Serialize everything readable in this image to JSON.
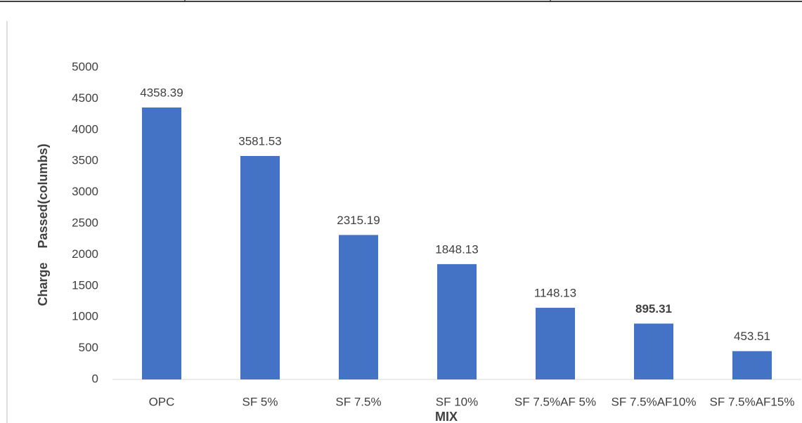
{
  "chart_data": {
    "type": "bar",
    "x_label": "MIX",
    "y_label": "Charge    Passed(columbs)",
    "categories": [
      "OPC",
      "SF 5%",
      "SF 7.5%",
      "SF 10%",
      "SF 7.5%AF 5%",
      "SF 7.5%AF10%",
      "SF 7.5%AF15%"
    ],
    "values": [
      4358.39,
      3581.53,
      2315.19,
      1848.13,
      1148.13,
      895.31,
      453.51
    ],
    "color": "#4472c4",
    "ylim": [
      0,
      5000
    ],
    "yticks": [
      0,
      500,
      1000,
      1500,
      2000,
      2500,
      3000,
      3500,
      4000,
      4500,
      5000
    ],
    "grid": false
  }
}
